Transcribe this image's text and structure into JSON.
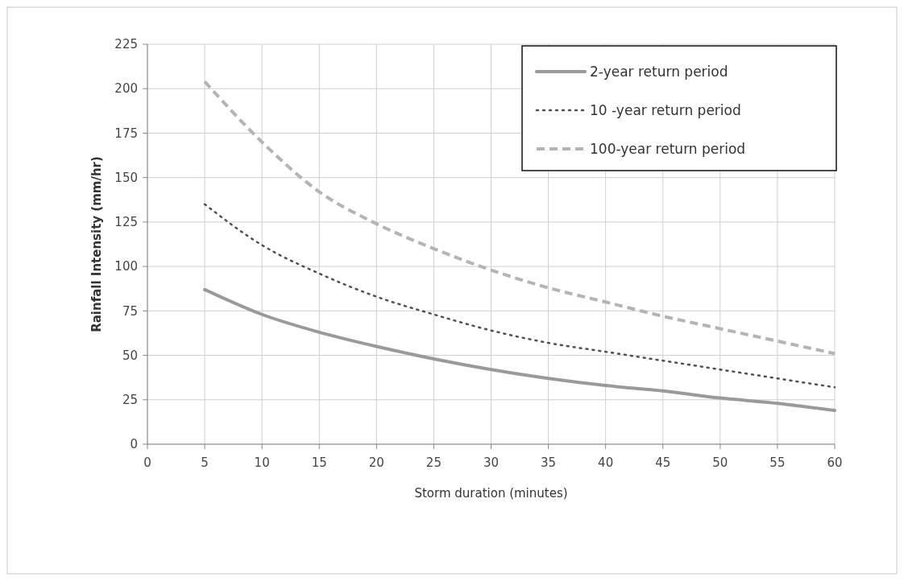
{
  "chart_data": {
    "type": "line",
    "xlabel": "Storm duration (minutes)",
    "ylabel": "Rainfall Intensity (mm/hr)",
    "x": [
      5,
      10,
      15,
      20,
      25,
      30,
      35,
      40,
      45,
      50,
      55,
      60
    ],
    "xlim": [
      0,
      60
    ],
    "xticks": [
      0,
      5,
      10,
      15,
      20,
      25,
      30,
      35,
      40,
      45,
      50,
      55,
      60
    ],
    "ylim": [
      0,
      225
    ],
    "yticks": [
      0,
      25,
      50,
      75,
      100,
      125,
      150,
      175,
      200,
      225
    ],
    "grid": true,
    "legend": "top right",
    "series": [
      {
        "name": "2-year return period",
        "color": "#9a9a9a",
        "line_style": "solid",
        "values": [
          87,
          73,
          63,
          55,
          48,
          42,
          37,
          33,
          30,
          26,
          23,
          19
        ]
      },
      {
        "name": "10 -year return period",
        "color": "#505050",
        "line_style": "dotted",
        "values": [
          135,
          112,
          96,
          83,
          73,
          64,
          57,
          52,
          47,
          42,
          37,
          32
        ]
      },
      {
        "name": "100-year return period",
        "color": "#b4b4b4",
        "line_style": "dashed",
        "values": [
          204,
          170,
          142,
          124,
          110,
          98,
          88,
          80,
          72,
          65,
          58,
          51
        ]
      }
    ]
  }
}
